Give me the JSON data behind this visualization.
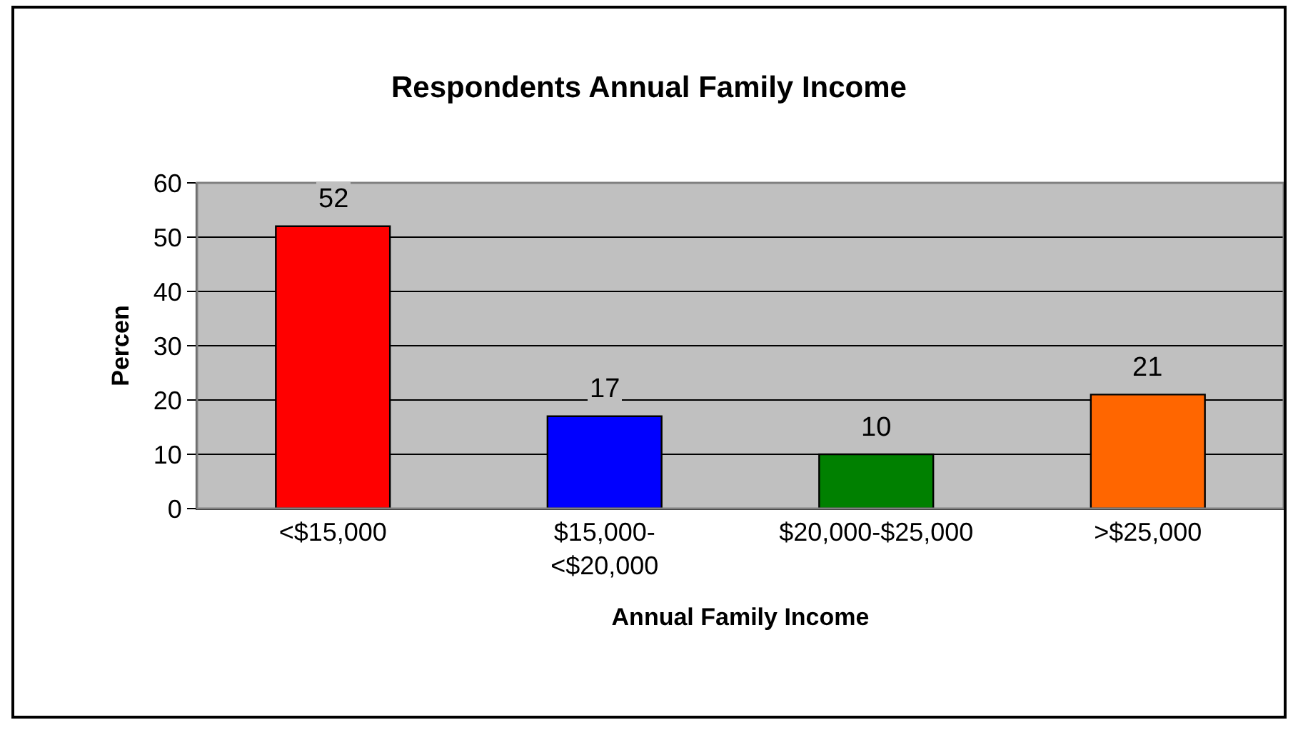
{
  "chart_data": {
    "type": "bar",
    "title": "Respondents Annual Family Income",
    "xlabel": "Annual Family Income",
    "ylabel": "Percen",
    "categories": [
      "<$15,000",
      "$15,000-\n<$20,000",
      "$20,000-$25,000",
      ">$25,000"
    ],
    "values": [
      52,
      17,
      10,
      21
    ],
    "colors": [
      "#ff0000",
      "#0000ff",
      "#008000",
      "#ff6600"
    ],
    "ylim": [
      0,
      60
    ],
    "yticks": [
      0,
      10,
      20,
      30,
      40,
      50,
      60
    ],
    "grid": "y",
    "data_labels": true
  }
}
